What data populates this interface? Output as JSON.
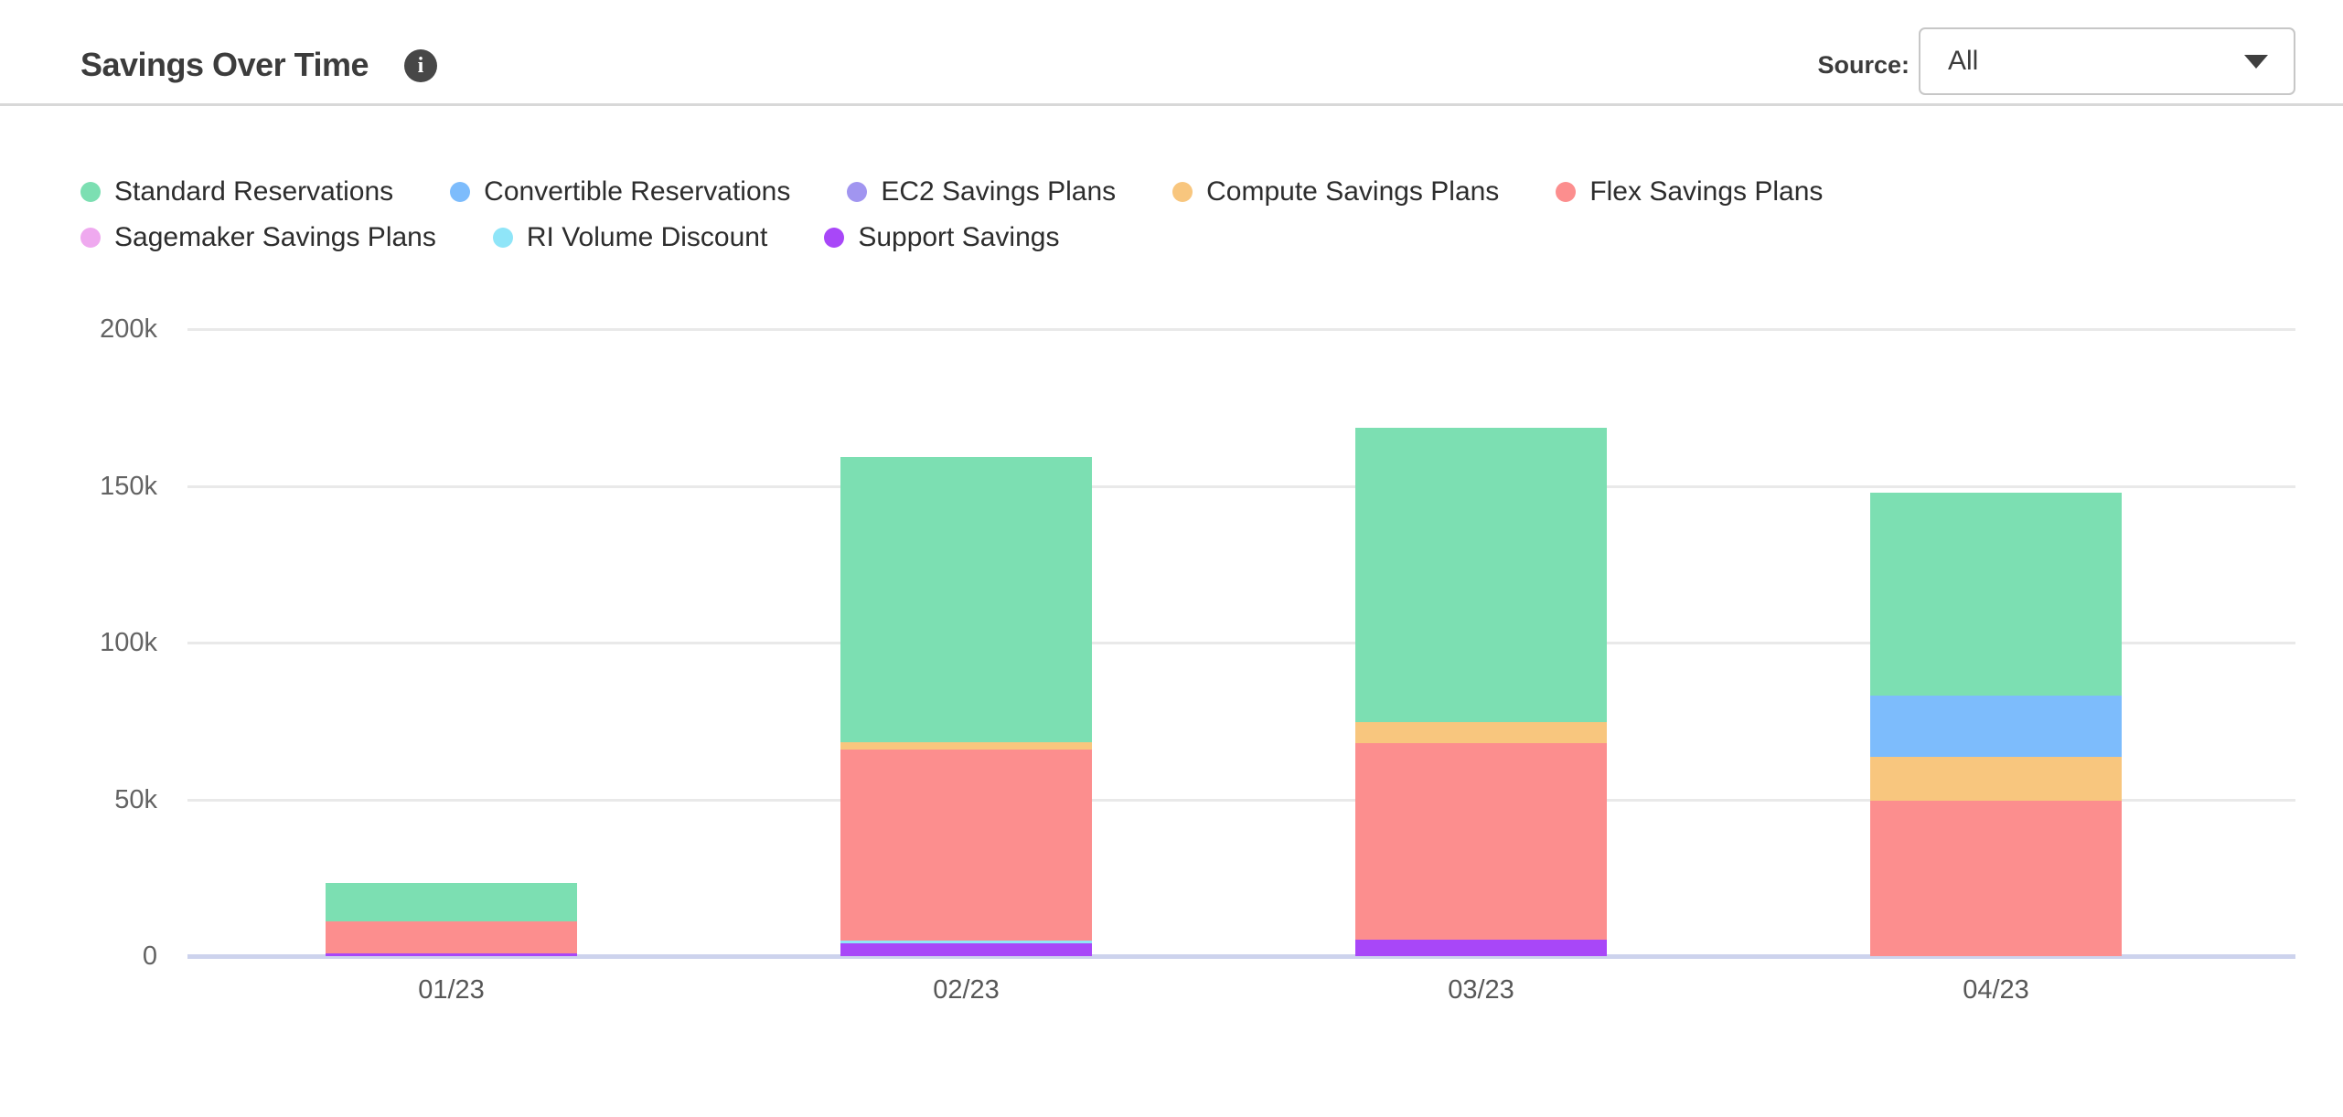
{
  "header": {
    "title": "Savings Over Time",
    "info_icon_glyph": "i",
    "source_label": "Source:",
    "source_value": "All"
  },
  "chart_data": {
    "type": "bar",
    "stacked": true,
    "title": "Savings Over Time",
    "xlabel": "",
    "ylabel": "",
    "grid": true,
    "legend_position": "top",
    "categories": [
      "01/23",
      "02/23",
      "03/23",
      "04/23"
    ],
    "ylim": [
      0,
      200000
    ],
    "yticks": [
      {
        "value": 0,
        "label": "0"
      },
      {
        "value": 50000,
        "label": "50k"
      },
      {
        "value": 100000,
        "label": "100k"
      },
      {
        "value": 150000,
        "label": "150k"
      },
      {
        "value": 200000,
        "label": "200k"
      }
    ],
    "series": [
      {
        "name": "Standard Reservations",
        "color": "#7CDFB2",
        "values": [
          12400,
          91000,
          94000,
          64700
        ]
      },
      {
        "name": "Convertible Reservations",
        "color": "#7DBCFC",
        "values": [
          0,
          0,
          0,
          19700
        ]
      },
      {
        "name": "EC2 Savings Plans",
        "color": "#A195F0",
        "values": [
          0,
          0,
          0,
          0
        ]
      },
      {
        "name": "Compute Savings Plans",
        "color": "#F8C67E",
        "values": [
          0,
          2200,
          6600,
          13800
        ]
      },
      {
        "name": "Flex Savings Plans",
        "color": "#FC8E8E",
        "values": [
          10000,
          61000,
          62700,
          49700
        ]
      },
      {
        "name": "Sagemaker Savings Plans",
        "color": "#EFA9EF",
        "values": [
          0,
          0,
          0,
          0
        ]
      },
      {
        "name": "RI Volume Discount",
        "color": "#8FE5F8",
        "values": [
          0,
          1000,
          0,
          0
        ]
      },
      {
        "name": "Support Savings",
        "color": "#A847F8",
        "values": [
          1000,
          4000,
          5200,
          0
        ]
      }
    ],
    "stack_order": [
      "Support Savings",
      "RI Volume Discount",
      "Sagemaker Savings Plans",
      "Flex Savings Plans",
      "Compute Savings Plans",
      "EC2 Savings Plans",
      "Convertible Reservations",
      "Standard Reservations"
    ],
    "totals": [
      23400,
      159200,
      168500,
      147900
    ]
  },
  "colors": {
    "grid": "#E9E9E9",
    "axis_baseline": "#CDD3ED",
    "axis_text": "#636363",
    "title_text": "#3C3C3C"
  }
}
